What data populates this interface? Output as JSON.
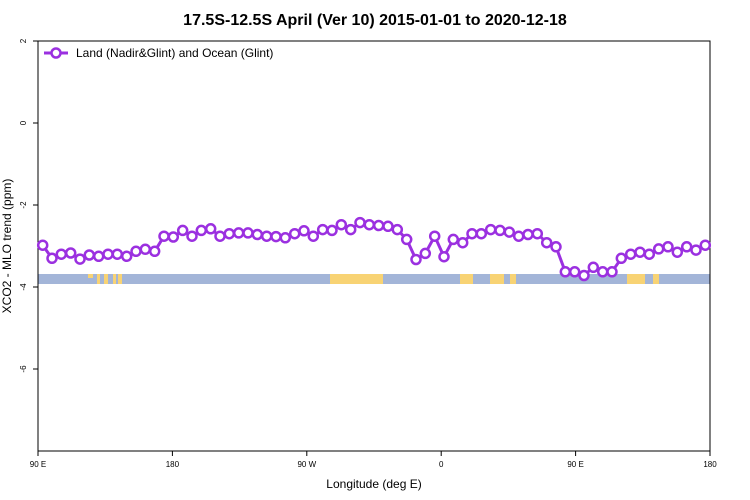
{
  "chart_data": {
    "type": "line",
    "title": "17.5S-12.5S April (Ver 10)   2015-01-01 to 2020-12-18",
    "xlabel": "Longitude (deg E)",
    "ylabel": "XCO2 - MLO trend (ppm)",
    "xlim": [
      90,
      450
    ],
    "ylim": [
      -8,
      2
    ],
    "x_ticks": [
      {
        "value": 90,
        "label": "90 E"
      },
      {
        "value": 162,
        "label": "180"
      },
      {
        "value": 234,
        "label": "90 W"
      },
      {
        "value": 306,
        "label": "0"
      },
      {
        "value": 378,
        "label": "90 E"
      },
      {
        "value": 450,
        "label": "180"
      }
    ],
    "y_ticks": [
      {
        "value": 2,
        "label": "2"
      },
      {
        "value": 0,
        "label": "0"
      },
      {
        "value": -2,
        "label": "-2"
      },
      {
        "value": -4,
        "label": "-4"
      },
      {
        "value": -6,
        "label": "-6"
      }
    ],
    "grid": false,
    "legend_position": "top-left",
    "series": [
      {
        "name": "Land (Nadir&Glint) and Ocean (Glint)",
        "color": "#9b30e0",
        "marker": "open-circle",
        "x": [
          92.5,
          97.5,
          102.5,
          107.5,
          112.5,
          117.5,
          122.5,
          127.5,
          132.5,
          137.5,
          142.5,
          147.5,
          152.5,
          157.5,
          162.5,
          167.5,
          172.5,
          177.5,
          182.5,
          187.5,
          192.5,
          197.5,
          202.5,
          207.5,
          212.5,
          217.5,
          222.5,
          227.5,
          232.5,
          237.5,
          242.5,
          247.5,
          252.5,
          257.5,
          262.5,
          267.5,
          272.5,
          277.5,
          282.5,
          287.5,
          292.5,
          297.5,
          302.5,
          307.5,
          312.5,
          317.5,
          322.5,
          327.5,
          332.5,
          337.5,
          342.5,
          347.5,
          352.5,
          357.5,
          362.5,
          367.5,
          372.5,
          377.5,
          382.5,
          387.5,
          392.5,
          397.5,
          402.5,
          407.5,
          412.5,
          417.5,
          422.5,
          427.5,
          432.5,
          437.5,
          442.5,
          447.5
        ],
        "y": [
          -2.98,
          -3.3,
          -3.2,
          -3.17,
          -3.32,
          -3.22,
          -3.25,
          -3.2,
          -3.2,
          -3.25,
          -3.13,
          -3.08,
          -3.13,
          -2.76,
          -2.78,
          -2.62,
          -2.76,
          -2.62,
          -2.58,
          -2.76,
          -2.7,
          -2.68,
          -2.68,
          -2.72,
          -2.76,
          -2.77,
          -2.8,
          -2.7,
          -2.63,
          -2.76,
          -2.6,
          -2.62,
          -2.48,
          -2.6,
          -2.43,
          -2.48,
          -2.5,
          -2.52,
          -2.6,
          -2.84,
          -3.33,
          -3.18,
          -2.76,
          -3.26,
          -2.84,
          -2.92,
          -2.7,
          -2.7,
          -2.6,
          -2.62,
          -2.66,
          -2.76,
          -2.72,
          -2.7,
          -2.92,
          -3.02,
          -3.63,
          -3.63,
          -3.72,
          -3.52,
          -3.63,
          -3.63,
          -3.3,
          -3.2,
          -3.15,
          -3.2,
          -3.07,
          -3.02,
          -3.15,
          -3.02,
          -3.1,
          -2.98
        ]
      }
    ]
  }
}
